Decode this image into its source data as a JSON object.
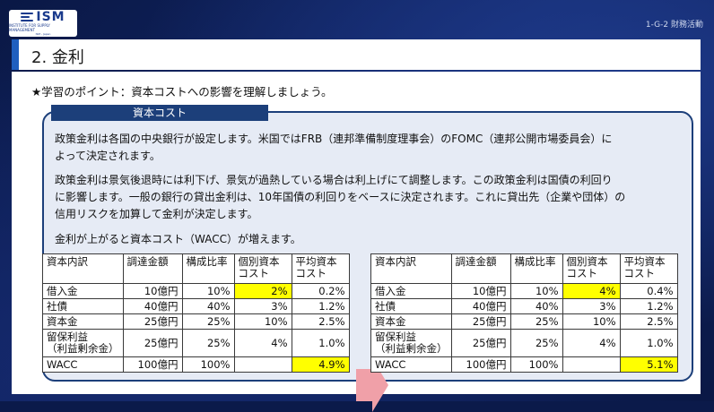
{
  "logo": {
    "text": "ISM",
    "sub": "INSTITUTE FOR SUPPLY MANAGEMENT",
    "sub2": "ISM - Japan"
  },
  "section_id": "1-G-2 財務活動",
  "title": "2. 金利",
  "point": "★学習のポイント：資本コストへの影響を理解しましょう。",
  "box_label": "資本コスト",
  "paragraphs": [
    "政策金利は各国の中央銀行が設定します。米国ではFRB（連邦準備制度理事会）のFOMC（連邦公開市場委員会）に",
    "よって決定されます。",
    "政策金利は景気後退時には利下げ、景気が過熱している場合は利上げにて調整します。この政策金利は国債の利回り",
    "に影響します。一般の銀行の貸出金利は、10年国債の利回りをベースに決定されます。これに貸出先（企業や団体）の",
    "信用リスクを加算して金利が決定します。",
    "金利が上がると資本コスト（WACC）が増えます。"
  ],
  "table_headers": {
    "c1": "資本内訳",
    "c2": "調達金額",
    "c3": "構成比率",
    "c4a": "個別資本",
    "c4b": "コスト",
    "c5a": "平均資本",
    "c5b": "コスト"
  },
  "table_left": [
    {
      "name": "借入金",
      "amount": "10億円",
      "ratio": "10%",
      "cost": "2%",
      "avg": "0.2%"
    },
    {
      "name": "社債",
      "amount": "40億円",
      "ratio": "40%",
      "cost": "3%",
      "avg": "1.2%"
    },
    {
      "name": "資本金",
      "amount": "25億円",
      "ratio": "25%",
      "cost": "10%",
      "avg": "2.5%"
    },
    {
      "name_a": "留保利益",
      "name_b": "（利益剰余金）",
      "amount": "25億円",
      "ratio": "25%",
      "cost": "4%",
      "avg": "1.0%"
    },
    {
      "name": "WACC",
      "amount": "100億円",
      "ratio": "100%",
      "cost": "",
      "avg": "4.9%"
    }
  ],
  "table_right": [
    {
      "name": "借入金",
      "amount": "10億円",
      "ratio": "10%",
      "cost": "4%",
      "avg": "0.4%"
    },
    {
      "name": "社債",
      "amount": "40億円",
      "ratio": "40%",
      "cost": "3%",
      "avg": "1.2%"
    },
    {
      "name": "資本金",
      "amount": "25億円",
      "ratio": "25%",
      "cost": "10%",
      "avg": "2.5%"
    },
    {
      "name_a": "留保利益",
      "name_b": "（利益剰余金）",
      "amount": "25億円",
      "ratio": "25%",
      "cost": "4%",
      "avg": "1.0%"
    },
    {
      "name": "WACC",
      "amount": "100億円",
      "ratio": "100%",
      "cost": "",
      "avg": "5.1%"
    }
  ],
  "colors": {
    "highlight": "#ffff00",
    "navy": "#1c3f7a",
    "arrow": "#f0a0a8"
  }
}
